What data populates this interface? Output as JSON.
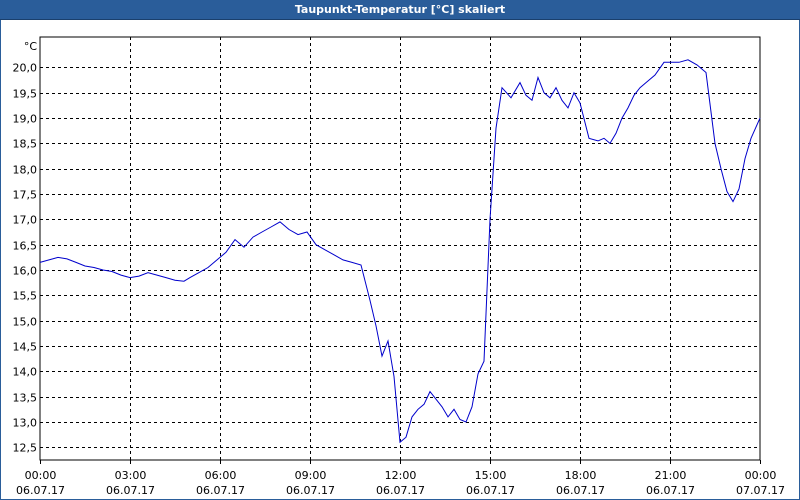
{
  "window": {
    "title": "Taupunkt-Temperatur [°C] skaliert"
  },
  "chart_data": {
    "type": "line",
    "title": "Taupunkt-Temperatur [°C] skaliert",
    "unit": "°C",
    "xlabel": "",
    "ylabel": "",
    "ylim": [
      12.25,
      20.6
    ],
    "grid": true,
    "y_ticks": [
      "12,5",
      "13,0",
      "13,5",
      "14,0",
      "14,5",
      "15,0",
      "15,5",
      "16,0",
      "16,5",
      "17,0",
      "17,5",
      "18,0",
      "18,5",
      "19,0",
      "19,5",
      "20,0"
    ],
    "x_ticks": [
      {
        "time": "00:00",
        "date": "06.07.17"
      },
      {
        "time": "03:00",
        "date": "06.07.17"
      },
      {
        "time": "06:00",
        "date": "06.07.17"
      },
      {
        "time": "09:00",
        "date": "06.07.17"
      },
      {
        "time": "12:00",
        "date": "06.07.17"
      },
      {
        "time": "15:00",
        "date": "06.07.17"
      },
      {
        "time": "18:00",
        "date": "06.07.17"
      },
      {
        "time": "21:00",
        "date": "06.07.17"
      },
      {
        "time": "00:00",
        "date": "07.07.17"
      }
    ],
    "series": [
      {
        "color": "#0000cc",
        "x_hours": [
          0,
          0.3,
          0.6,
          0.9,
          1.2,
          1.5,
          1.8,
          2.1,
          2.4,
          2.7,
          3.0,
          3.3,
          3.6,
          3.9,
          4.2,
          4.5,
          4.8,
          5.0,
          5.3,
          5.6,
          5.9,
          6.2,
          6.5,
          6.8,
          7.1,
          7.4,
          7.7,
          8.0,
          8.3,
          8.6,
          8.9,
          9.2,
          9.5,
          9.8,
          10.1,
          10.4,
          10.7,
          11.0,
          11.2,
          11.4,
          11.6,
          11.8,
          12.0,
          12.2,
          12.4,
          12.6,
          12.8,
          13.0,
          13.2,
          13.4,
          13.6,
          13.8,
          14.0,
          14.2,
          14.4,
          14.6,
          14.8,
          15.0,
          15.2,
          15.4,
          15.7,
          16.0,
          16.2,
          16.4,
          16.6,
          16.8,
          17.0,
          17.2,
          17.4,
          17.6,
          17.8,
          18.0,
          18.3,
          18.6,
          18.8,
          19.0,
          19.2,
          19.4,
          19.6,
          19.8,
          20.0,
          20.2,
          20.5,
          20.8,
          21.0,
          21.3,
          21.6,
          21.9,
          22.2,
          22.5,
          22.7,
          22.9,
          23.1,
          23.3,
          23.5,
          23.7,
          24.0
        ],
        "values": [
          16.15,
          16.2,
          16.25,
          16.22,
          16.15,
          16.08,
          16.05,
          16.0,
          15.97,
          15.9,
          15.85,
          15.88,
          15.95,
          15.9,
          15.85,
          15.8,
          15.78,
          15.85,
          15.95,
          16.05,
          16.2,
          16.35,
          16.6,
          16.45,
          16.65,
          16.75,
          16.85,
          16.95,
          16.8,
          16.7,
          16.75,
          16.5,
          16.4,
          16.3,
          16.2,
          16.15,
          16.1,
          15.4,
          14.9,
          14.3,
          14.6,
          13.9,
          12.6,
          12.7,
          13.1,
          13.25,
          13.35,
          13.6,
          13.45,
          13.3,
          13.1,
          13.25,
          13.05,
          13.0,
          13.3,
          13.95,
          14.2,
          17.0,
          18.8,
          19.6,
          19.4,
          19.7,
          19.45,
          19.35,
          19.8,
          19.5,
          19.4,
          19.6,
          19.35,
          19.2,
          19.5,
          19.3,
          18.6,
          18.55,
          18.6,
          18.5,
          18.7,
          19.0,
          19.2,
          19.45,
          19.6,
          19.7,
          19.85,
          20.1,
          20.1,
          20.1,
          20.15,
          20.05,
          19.9,
          18.5,
          18.0,
          17.55,
          17.35,
          17.6,
          18.2,
          18.6,
          19.0
        ]
      }
    ]
  }
}
